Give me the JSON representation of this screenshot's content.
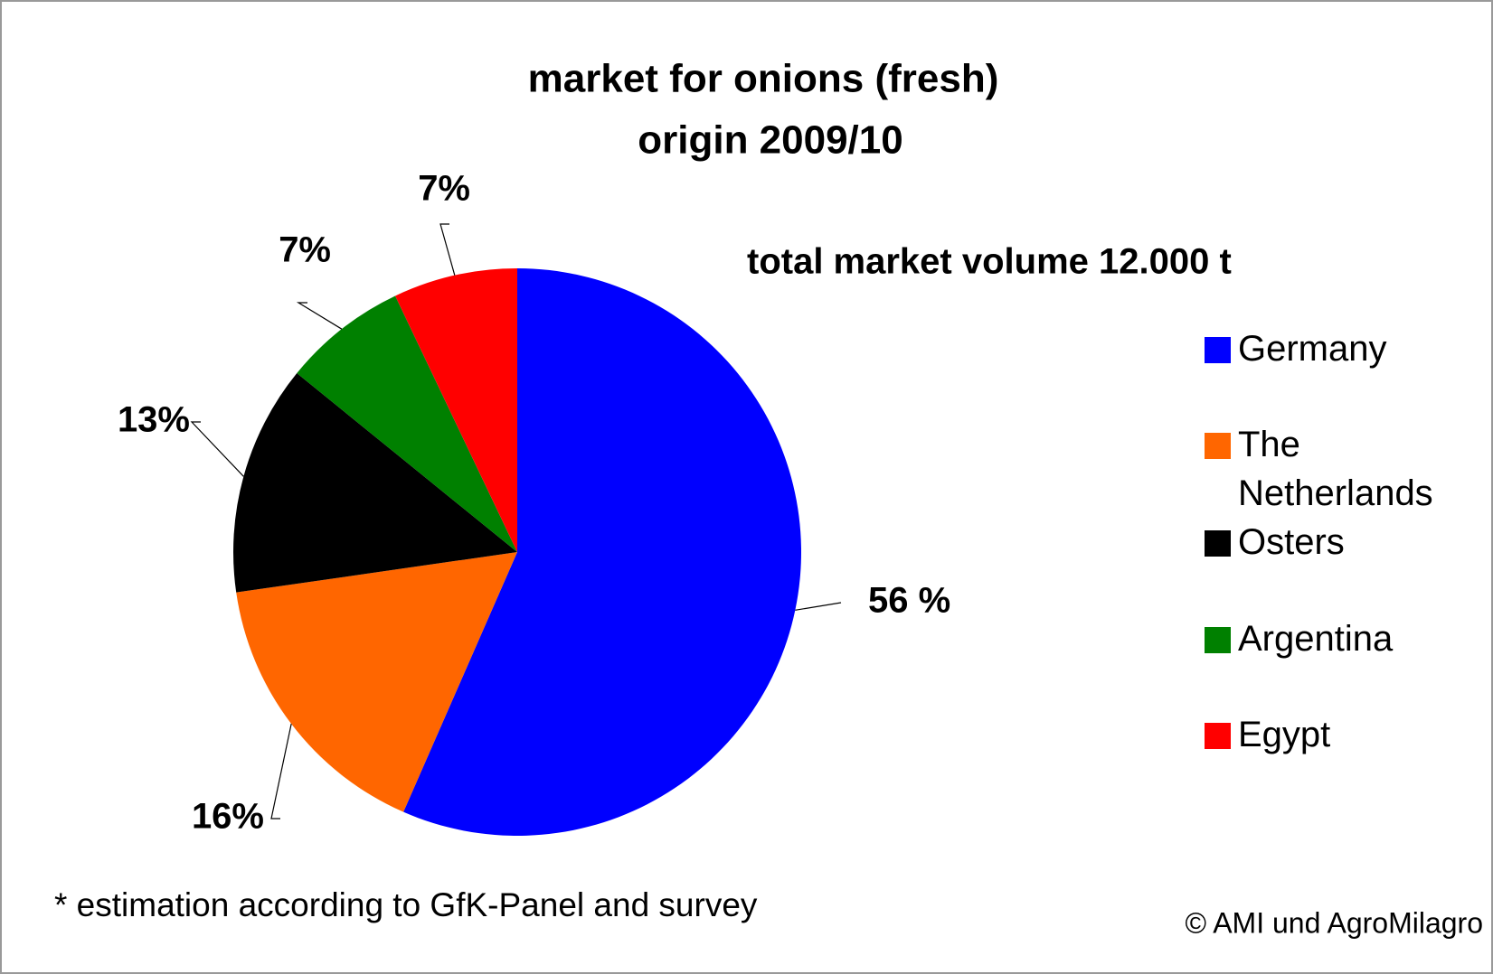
{
  "chart_data": {
    "type": "pie",
    "title": "market for onions (fresh)",
    "subtitle": "origin 2009/10",
    "annotation": "total market volume  12.000 t",
    "footnote": "* estimation according to GfK-Panel and survey",
    "source": "© AMI und AgroMilagro",
    "categories": [
      "Germany",
      "The Netherlands",
      "Osters",
      "Argentina",
      "Egypt"
    ],
    "values": [
      56,
      16,
      13,
      7,
      7
    ],
    "value_labels": [
      "56 %",
      "16%",
      "13%",
      "7%",
      "7%"
    ],
    "colors": [
      "#0000ff",
      "#ff6600",
      "#000000",
      "#008000",
      "#ff0000"
    ],
    "legend": "right"
  }
}
